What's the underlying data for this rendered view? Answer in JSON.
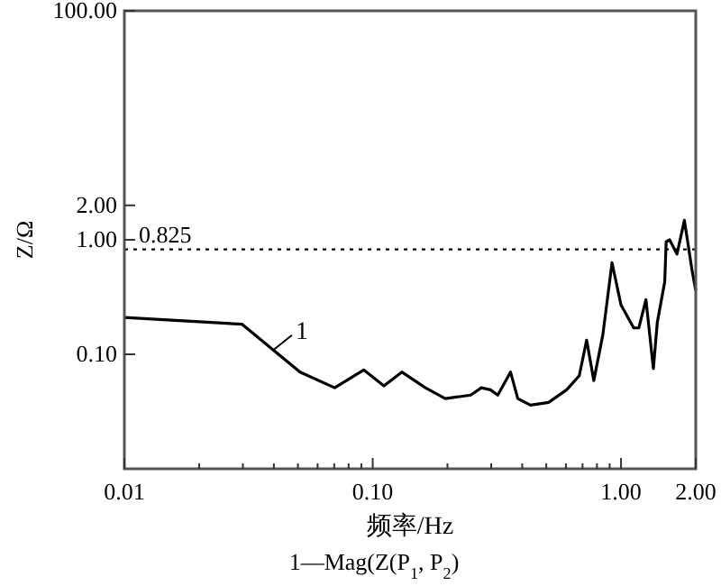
{
  "chart_data": {
    "type": "line",
    "xlabel": "频率/Hz",
    "ylabel": "Z/Ω",
    "log": "xy",
    "grid": false,
    "marker": "none",
    "line_style": "solid",
    "xlim": [
      0.01,
      2
    ],
    "ylim": [
      0.01,
      100
    ],
    "xticks": [
      {
        "value": 0.01,
        "label": "0.01"
      },
      {
        "value": 0.02,
        "label": null
      },
      {
        "value": 0.03,
        "label": null
      },
      {
        "value": 0.04,
        "label": null
      },
      {
        "value": 0.05,
        "label": null
      },
      {
        "value": 0.06,
        "label": null
      },
      {
        "value": 0.07,
        "label": null
      },
      {
        "value": 0.08,
        "label": null
      },
      {
        "value": 0.09,
        "label": null
      },
      {
        "value": 0.1,
        "label": "0.10"
      },
      {
        "value": 0.2,
        "label": null
      },
      {
        "value": 0.3,
        "label": null
      },
      {
        "value": 0.4,
        "label": null
      },
      {
        "value": 0.5,
        "label": null
      },
      {
        "value": 0.6,
        "label": null
      },
      {
        "value": 0.7,
        "label": null
      },
      {
        "value": 0.8,
        "label": null
      },
      {
        "value": 0.9,
        "label": null
      },
      {
        "value": 1,
        "label": "1.00"
      },
      {
        "value": 2,
        "label": "2.00"
      }
    ],
    "yticks": [
      {
        "value": 0.1,
        "label": "0.10"
      },
      {
        "value": 1,
        "label": "1.00"
      },
      {
        "value": 2,
        "label": "2.00"
      },
      {
        "value": 100,
        "label": "100.00"
      }
    ],
    "series": [
      {
        "color": "#000000",
        "x": [
          0.01,
          0.0298,
          0.051,
          0.0703,
          0.092,
          0.111,
          0.131,
          0.163,
          0.196,
          0.248,
          0.274,
          0.298,
          0.319,
          0.359,
          0.384,
          0.432,
          0.511,
          0.604,
          0.679,
          0.727,
          0.777,
          0.845,
          0.92,
          1.0,
          1.125,
          1.18,
          1.26,
          1.35,
          1.4,
          1.5,
          1.52,
          1.57,
          1.68,
          1.8,
          1.93,
          2.0
        ],
        "values": [
          0.21,
          0.183,
          0.07,
          0.051,
          0.073,
          0.053,
          0.07,
          0.051,
          0.041,
          0.044,
          0.051,
          0.049,
          0.044,
          0.07,
          0.041,
          0.036,
          0.038,
          0.049,
          0.065,
          0.133,
          0.059,
          0.148,
          0.63,
          0.27,
          0.17,
          0.17,
          0.3,
          0.075,
          0.19,
          0.43,
          0.96,
          1.0,
          0.75,
          1.48,
          0.55,
          0.36
        ]
      }
    ],
    "ref_lines": [
      {
        "axis": "y",
        "value": 0.825,
        "label": "0.825",
        "color": "#000000",
        "line_style": "dotted"
      }
    ],
    "annotations": [
      {
        "text": "1",
        "x": 0.04,
        "y": 0.11
      },
      "1—Mag(Z(P$_{1}$, P$_{2}$)"
    ]
  }
}
